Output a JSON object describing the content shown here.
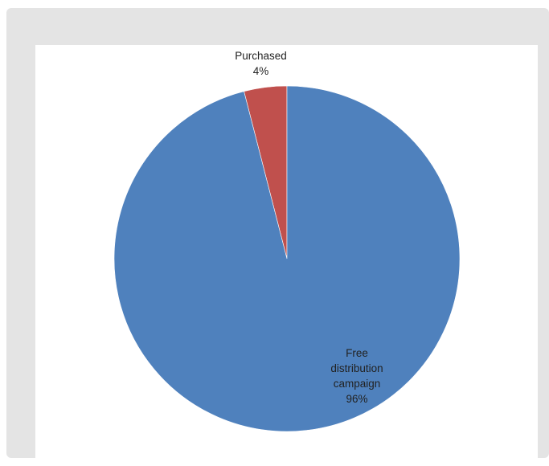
{
  "chart_data": {
    "type": "pie",
    "title": "",
    "slices": [
      {
        "label_lines": [
          "Purchased"
        ],
        "label": "Purchased",
        "value": 4,
        "percent_text": "4%",
        "color": "#c0504d"
      },
      {
        "label_lines": [
          "Free",
          "distribution",
          "campaign"
        ],
        "label": "Free distribution campaign",
        "value": 96,
        "percent_text": "96%",
        "color": "#4f81bd"
      }
    ],
    "start_angle_deg": 0,
    "direction": "counterclockwise_from_top",
    "legend": "none",
    "data_labels": "category_and_percent"
  }
}
